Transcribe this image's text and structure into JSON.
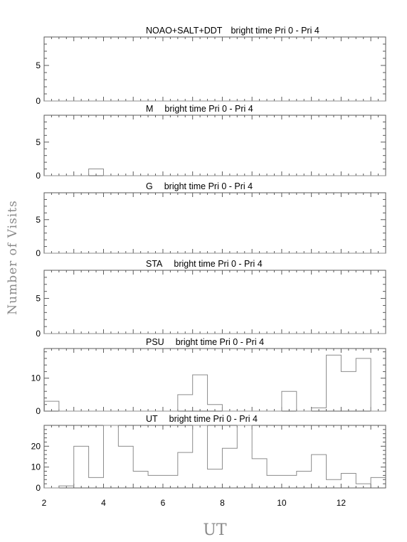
{
  "figure": {
    "ylabel": "Number of Visits",
    "xlabel": "UT"
  },
  "chart_data": [
    {
      "type": "histogram",
      "title_parts": [
        "NOAO+SALT+DDT",
        "bright time Pri 0 - Pri 4"
      ],
      "xlim": [
        2.0,
        13.5
      ],
      "ylim": [
        0,
        9
      ],
      "ytick_labels": [
        "0",
        "5"
      ],
      "bin_width": 0.5,
      "bin_starts": [
        2.0,
        2.5,
        3.0,
        3.5,
        4.0,
        4.5,
        5.0,
        5.5,
        6.0,
        6.5,
        7.0,
        7.5,
        8.0,
        8.5,
        9.0,
        9.5,
        10.0,
        10.5,
        11.0,
        11.5,
        12.0,
        12.5,
        13.0
      ],
      "values": [
        0,
        0,
        0,
        0,
        0,
        0,
        0,
        0,
        0,
        0,
        0,
        0,
        0,
        0,
        0,
        0,
        0,
        0,
        0,
        0,
        0,
        0,
        0
      ]
    },
    {
      "type": "histogram",
      "title_parts": [
        "M",
        "bright time Pri 0 - Pri 4"
      ],
      "xlim": [
        2.0,
        13.5
      ],
      "ylim": [
        0,
        9
      ],
      "ytick_labels": [
        "0",
        "5"
      ],
      "bin_width": 0.5,
      "bin_starts": [
        2.0,
        2.5,
        3.0,
        3.5,
        4.0,
        4.5,
        5.0,
        5.5,
        6.0,
        6.5,
        7.0,
        7.5,
        8.0,
        8.5,
        9.0,
        9.5,
        10.0,
        10.5,
        11.0,
        11.5,
        12.0,
        12.5,
        13.0
      ],
      "values": [
        0,
        0,
        0,
        1,
        0,
        0,
        0,
        0,
        0,
        0,
        0,
        0,
        0,
        0,
        0,
        0,
        0,
        0,
        0,
        0,
        0,
        0,
        0
      ]
    },
    {
      "type": "histogram",
      "title_parts": [
        "G",
        "bright time Pri 0 - Pri 4"
      ],
      "xlim": [
        2.0,
        13.5
      ],
      "ylim": [
        0,
        9
      ],
      "ytick_labels": [
        "0",
        "5"
      ],
      "bin_width": 0.5,
      "bin_starts": [
        2.0,
        2.5,
        3.0,
        3.5,
        4.0,
        4.5,
        5.0,
        5.5,
        6.0,
        6.5,
        7.0,
        7.5,
        8.0,
        8.5,
        9.0,
        9.5,
        10.0,
        10.5,
        11.0,
        11.5,
        12.0,
        12.5,
        13.0
      ],
      "values": [
        0,
        0,
        0,
        0,
        0,
        0,
        0,
        0,
        0,
        0,
        0,
        0,
        0,
        0,
        0,
        0,
        0,
        0,
        0,
        0,
        0,
        0,
        0
      ]
    },
    {
      "type": "histogram",
      "title_parts": [
        "STA",
        "bright time Pri 0 - Pri 4"
      ],
      "xlim": [
        2.0,
        13.5
      ],
      "ylim": [
        0,
        9
      ],
      "ytick_labels": [
        "0",
        "5"
      ],
      "bin_width": 0.5,
      "bin_starts": [
        2.0,
        2.5,
        3.0,
        3.5,
        4.0,
        4.5,
        5.0,
        5.5,
        6.0,
        6.5,
        7.0,
        7.5,
        8.0,
        8.5,
        9.0,
        9.5,
        10.0,
        10.5,
        11.0,
        11.5,
        12.0,
        12.5,
        13.0
      ],
      "values": [
        0,
        0,
        0,
        0,
        0,
        0,
        0,
        0,
        0,
        0,
        0,
        0,
        0,
        0,
        0,
        0,
        0,
        0,
        0,
        0,
        0,
        0,
        0
      ]
    },
    {
      "type": "histogram",
      "title_parts": [
        "PSU",
        "bright time Pri 0 - Pri 4"
      ],
      "xlim": [
        2.0,
        13.5
      ],
      "ylim": [
        0,
        19
      ],
      "ytick_labels": [
        "0",
        "10"
      ],
      "bin_width": 0.5,
      "bin_starts": [
        2.0,
        2.5,
        3.0,
        3.5,
        4.0,
        4.5,
        5.0,
        5.5,
        6.0,
        6.5,
        7.0,
        7.5,
        8.0,
        8.5,
        9.0,
        9.5,
        10.0,
        10.5,
        11.0,
        11.5,
        12.0,
        12.5,
        13.0
      ],
      "values": [
        3,
        0,
        0,
        0,
        0,
        0,
        0,
        0,
        0,
        5,
        11,
        2,
        0,
        0,
        0,
        0,
        6,
        0,
        1,
        17,
        12,
        16,
        0
      ]
    },
    {
      "type": "histogram",
      "title_parts": [
        "UT",
        "bright time Pri 0 - Pri 4"
      ],
      "xlim": [
        2.0,
        13.5
      ],
      "ylim": [
        0,
        30
      ],
      "ytick_labels": [
        "0",
        "10",
        "20"
      ],
      "bin_width": 0.5,
      "bin_starts": [
        2.0,
        2.5,
        3.0,
        3.5,
        4.0,
        4.5,
        5.0,
        5.5,
        6.0,
        6.5,
        7.0,
        7.5,
        8.0,
        8.5,
        9.0,
        9.5,
        10.0,
        10.5,
        11.0,
        11.5,
        12.0,
        12.5,
        13.0
      ],
      "values": [
        0,
        1,
        20,
        5,
        30,
        20,
        8,
        6,
        6,
        17,
        30,
        9,
        19,
        30,
        14,
        6,
        6,
        8,
        16,
        4,
        7,
        2,
        5
      ],
      "xtick_labels": [
        "2",
        "4",
        "6",
        "8",
        "10",
        "12"
      ]
    }
  ]
}
